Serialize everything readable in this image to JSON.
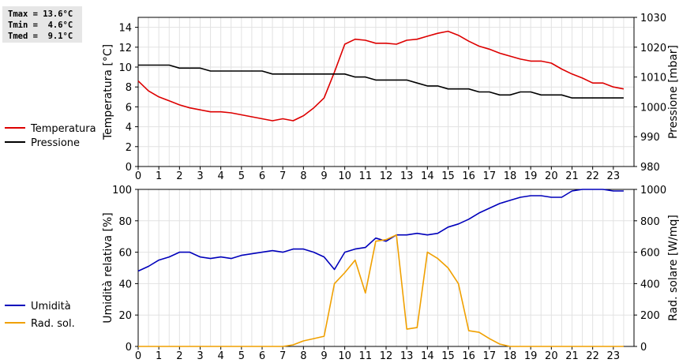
{
  "stats": [
    "Tmax = 13.6°C",
    "Tmin =  4.6°C",
    "Tmed =  9.1°C"
  ],
  "chart_data": [
    {
      "type": "line",
      "x_ticks": [
        "0",
        "1",
        "2",
        "3",
        "4",
        "5",
        "6",
        "7",
        "8",
        "9",
        "10",
        "11",
        "12",
        "13",
        "14",
        "15",
        "16",
        "17",
        "18",
        "19",
        "20",
        "21",
        "22",
        "23"
      ],
      "xlim": [
        0,
        24
      ],
      "ylabel": "Temperatura [°C]",
      "ylim": [
        0,
        15
      ],
      "yticks": [
        0,
        2,
        4,
        6,
        8,
        10,
        12,
        14
      ],
      "ylabel_right": "Pressione [mbar]",
      "ylim_right": [
        980,
        1030
      ],
      "yticks_right": [
        980,
        990,
        1000,
        1010,
        1020,
        1030
      ],
      "grid": true,
      "legend_placement": "left",
      "series": [
        {
          "name": "Temperatura",
          "color": "#dd0000",
          "axis": "left",
          "x": [
            0,
            0.5,
            1,
            1.5,
            2,
            2.5,
            3,
            3.5,
            4,
            4.5,
            5,
            5.5,
            6,
            6.5,
            7,
            7.5,
            8,
            8.5,
            9,
            9.5,
            10,
            10.5,
            11,
            11.5,
            12,
            12.5,
            13,
            13.5,
            14,
            14.5,
            15,
            15.5,
            16,
            16.5,
            17,
            17.5,
            18,
            18.5,
            19,
            19.5,
            20,
            20.5,
            21,
            21.5,
            22,
            22.5,
            23,
            23.5
          ],
          "values": [
            8.6,
            7.6,
            7.0,
            6.6,
            6.2,
            5.9,
            5.7,
            5.5,
            5.5,
            5.4,
            5.2,
            5.0,
            4.8,
            4.6,
            4.8,
            4.6,
            5.1,
            5.9,
            6.9,
            9.5,
            12.3,
            12.8,
            12.7,
            12.4,
            12.4,
            12.3,
            12.7,
            12.8,
            13.1,
            13.4,
            13.6,
            13.2,
            12.6,
            12.1,
            11.8,
            11.4,
            11.1,
            10.8,
            10.6,
            10.6,
            10.4,
            9.8,
            9.3,
            8.9,
            8.4,
            8.4,
            8.0,
            7.8
          ]
        },
        {
          "name": "Pressione",
          "color": "#000000",
          "axis": "right",
          "x": [
            0,
            1,
            1.5,
            2,
            3,
            3.5,
            4,
            5,
            6,
            6.5,
            7,
            8,
            9,
            10,
            10.5,
            11,
            11.5,
            12,
            13,
            13.5,
            14,
            14.5,
            15,
            16,
            16.5,
            17,
            17.5,
            18,
            18.5,
            19,
            19.5,
            20,
            20.5,
            21,
            22,
            23,
            23.5
          ],
          "values": [
            1014,
            1014,
            1014,
            1013,
            1013,
            1012,
            1012,
            1012,
            1012,
            1011,
            1011,
            1011,
            1011,
            1011,
            1010,
            1010,
            1009,
            1009,
            1009,
            1008,
            1007,
            1007,
            1006,
            1006,
            1005,
            1005,
            1004,
            1004,
            1005,
            1005,
            1004,
            1004,
            1004,
            1003,
            1003,
            1003,
            1003
          ]
        }
      ]
    },
    {
      "type": "line",
      "x_ticks": [
        "0",
        "1",
        "2",
        "3",
        "4",
        "5",
        "6",
        "7",
        "8",
        "9",
        "10",
        "11",
        "12",
        "13",
        "14",
        "15",
        "16",
        "17",
        "18",
        "19",
        "20",
        "21",
        "22",
        "23"
      ],
      "xlim": [
        0,
        24
      ],
      "ylabel": "Umidità relativa [%]",
      "ylim": [
        0,
        100
      ],
      "yticks": [
        0,
        20,
        40,
        60,
        80,
        100
      ],
      "ylabel_right": "Rad. solare [W/mq]",
      "ylim_right": [
        0,
        1000
      ],
      "yticks_right": [
        0,
        200,
        400,
        600,
        800,
        1000
      ],
      "grid": true,
      "legend_placement": "left",
      "series": [
        {
          "name": "Umidità",
          "color": "#0000bb",
          "axis": "left",
          "x": [
            0,
            0.5,
            1,
            1.5,
            2,
            2.5,
            3,
            3.5,
            4,
            4.5,
            5,
            5.5,
            6,
            6.5,
            7,
            7.5,
            8,
            8.5,
            9,
            9.5,
            10,
            10.5,
            11,
            11.5,
            12,
            12.5,
            13,
            13.5,
            14,
            14.5,
            15,
            15.5,
            16,
            16.5,
            17,
            17.5,
            18,
            18.5,
            19,
            19.5,
            20,
            20.5,
            21,
            21.5,
            22,
            22.5,
            23,
            23.5
          ],
          "values": [
            48,
            51,
            55,
            57,
            60,
            60,
            57,
            56,
            57,
            56,
            58,
            59,
            60,
            61,
            60,
            62,
            62,
            60,
            57,
            49,
            60,
            62,
            63,
            69,
            67,
            71,
            71,
            72,
            71,
            72,
            76,
            78,
            81,
            85,
            88,
            91,
            93,
            95,
            96,
            96,
            95,
            95,
            99,
            100,
            100,
            100,
            99,
            99
          ]
        },
        {
          "name": "Rad. sol.",
          "color": "#f0a000",
          "axis": "right",
          "x": [
            0,
            1,
            2,
            3,
            4,
            5,
            6,
            7,
            7.5,
            8,
            8.5,
            9,
            9.5,
            10,
            10.5,
            11,
            11.5,
            12,
            12.5,
            13,
            13.5,
            14,
            14.5,
            15,
            15.5,
            16,
            16.5,
            17,
            17.5,
            18,
            19,
            20,
            21,
            22,
            23,
            23.5
          ],
          "values": [
            0,
            0,
            0,
            0,
            0,
            0,
            0,
            0,
            10,
            35,
            50,
            65,
            400,
            470,
            550,
            340,
            670,
            680,
            710,
            110,
            120,
            600,
            560,
            500,
            400,
            100,
            90,
            50,
            15,
            0,
            0,
            0,
            0,
            0,
            0,
            0
          ]
        }
      ]
    }
  ]
}
